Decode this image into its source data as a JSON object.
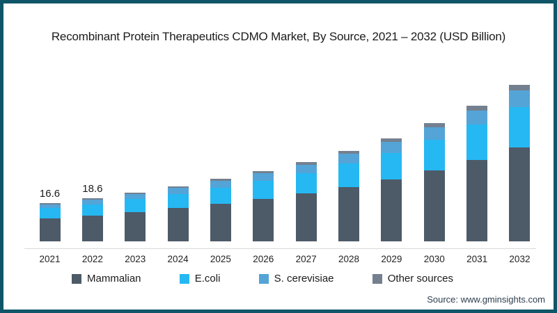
{
  "title": "Recombinant Protein Therapeutics CDMO Market, By Source, 2021 – 2032 (USD Billion)",
  "source": "Source: www.gminsights.com",
  "frame": {
    "border_color": "#0f5668",
    "background": "#ffffff",
    "baseline_color": "#d9d9d9"
  },
  "legend": [
    {
      "label": "Mammalian",
      "color": "#4d5a68"
    },
    {
      "label": "E.coli",
      "color": "#25b8f3"
    },
    {
      "label": "S. cerevisiae",
      "color": "#54a4d7"
    },
    {
      "label": "Other sources",
      "color": "#74808f"
    }
  ],
  "chart_data": {
    "type": "bar",
    "stacked": true,
    "title": "Recombinant Protein Therapeutics CDMO Market, By Source, 2021 – 2032 (USD Billion)",
    "xlabel": "",
    "ylabel": "USD Billion",
    "ylim": [
      0,
      70
    ],
    "grid": false,
    "legend_position": "bottom",
    "categories": [
      "2021",
      "2022",
      "2023",
      "2024",
      "2025",
      "2026",
      "2027",
      "2028",
      "2029",
      "2030",
      "2031",
      "2032"
    ],
    "totals": [
      16.6,
      18.6,
      21.1,
      23.8,
      26.9,
      30.3,
      34.3,
      39.0,
      44.4,
      50.8,
      58.3,
      67.4
    ],
    "bar_labels": [
      "16.6",
      "18.6",
      "",
      "",
      "",
      "",
      "",
      "",
      "",
      "",
      "",
      ""
    ],
    "series": [
      {
        "name": "Mammalian",
        "color": "#4d5a68",
        "values": [
          10.0,
          11.2,
          12.7,
          14.3,
          16.1,
          18.2,
          20.6,
          23.4,
          26.6,
          30.5,
          35.0,
          40.4
        ]
      },
      {
        "name": "E.coli",
        "color": "#25b8f3",
        "values": [
          4.3,
          4.8,
          5.5,
          6.2,
          7.0,
          7.9,
          8.9,
          10.1,
          11.5,
          13.2,
          15.2,
          17.5
        ]
      },
      {
        "name": "S. cerevisiae",
        "color": "#54a4d7",
        "values": [
          1.7,
          2.0,
          2.2,
          2.5,
          2.8,
          3.2,
          3.6,
          4.1,
          4.7,
          5.3,
          6.1,
          7.1
        ]
      },
      {
        "name": "Other sources",
        "color": "#74808f",
        "values": [
          0.6,
          0.6,
          0.7,
          0.8,
          1.0,
          1.0,
          1.2,
          1.4,
          1.6,
          1.8,
          2.0,
          2.4
        ]
      }
    ]
  }
}
